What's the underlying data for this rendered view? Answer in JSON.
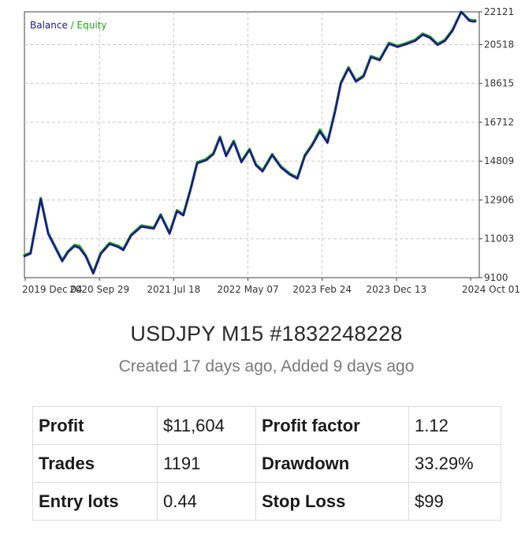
{
  "chart_data": {
    "type": "line",
    "legend": {
      "balance": "Balance",
      "separator": " / ",
      "equity": "Equity"
    },
    "legend_position": "top-left",
    "grid": true,
    "colors": {
      "balance": "#1a1a8c",
      "equity": "#22a022",
      "grid": "#c8c8c8",
      "axis": "#404040"
    },
    "y_ticks": [
      9100,
      11003,
      12906,
      14809,
      16712,
      18615,
      20518,
      22121
    ],
    "ylim": [
      9100,
      22121
    ],
    "x_ticks": [
      "2019 Dec 04",
      "2020 Sep 29",
      "2021 Jul 18",
      "2022 May 07",
      "2023 Feb 24",
      "2023 Dec 13",
      "2024 Oct 01"
    ],
    "xlim": [
      "2019-09-15",
      "2024-10-01"
    ],
    "series": [
      {
        "name": "Balance",
        "x": [
          "2019-09-15",
          "2019-10-10",
          "2019-11-20",
          "2019-12-20",
          "2020-01-10",
          "2020-02-15",
          "2020-03-10",
          "2020-04-05",
          "2020-04-25",
          "2020-05-20",
          "2020-06-20",
          "2020-07-20",
          "2020-08-25",
          "2020-09-29",
          "2020-10-20",
          "2020-11-20",
          "2021-01-01",
          "2021-02-20",
          "2021-03-20",
          "2021-04-25",
          "2021-05-25",
          "2021-06-20",
          "2021-07-18",
          "2021-08-15",
          "2021-09-20",
          "2021-10-20",
          "2021-11-15",
          "2021-12-10",
          "2022-01-10",
          "2022-02-10",
          "2022-03-15",
          "2022-04-10",
          "2022-05-07",
          "2022-06-15",
          "2022-07-20",
          "2022-08-25",
          "2022-09-25",
          "2022-10-25",
          "2022-11-25",
          "2022-12-25",
          "2023-01-25",
          "2023-02-24",
          "2023-03-20",
          "2023-04-20",
          "2023-05-20",
          "2023-06-20",
          "2023-07-20",
          "2023-08-25",
          "2023-10-01",
          "2023-11-05",
          "2023-12-13",
          "2024-01-15",
          "2024-02-15",
          "2024-03-15",
          "2024-04-15",
          "2024-05-15",
          "2024-06-15",
          "2024-07-20",
          "2024-08-20",
          "2024-09-01",
          "2024-09-15"
        ],
        "values": [
          10150,
          10280,
          12950,
          11250,
          10750,
          9900,
          10350,
          10650,
          10550,
          10150,
          9300,
          10250,
          10750,
          10600,
          10450,
          11150,
          11600,
          11500,
          12150,
          11250,
          12350,
          12150,
          13350,
          14700,
          14850,
          15150,
          15950,
          15050,
          15750,
          14750,
          15350,
          14600,
          14300,
          15100,
          14500,
          14150,
          13950,
          15050,
          15600,
          16250,
          15700,
          17200,
          18600,
          19350,
          18700,
          18950,
          19900,
          19750,
          20550,
          20400,
          20550,
          20700,
          21000,
          20850,
          20500,
          20700,
          21200,
          22121,
          21700,
          21650,
          21650
        ]
      },
      {
        "name": "Equity",
        "x": [
          "2019-09-15",
          "2019-10-10",
          "2019-11-20",
          "2019-12-20",
          "2020-01-10",
          "2020-02-15",
          "2020-03-10",
          "2020-04-05",
          "2020-04-25",
          "2020-05-20",
          "2020-06-20",
          "2020-07-20",
          "2020-08-25",
          "2020-09-29",
          "2020-10-20",
          "2020-11-20",
          "2021-01-01",
          "2021-02-20",
          "2021-03-20",
          "2021-04-25",
          "2021-05-25",
          "2021-06-20",
          "2021-07-18",
          "2021-08-15",
          "2021-09-20",
          "2021-10-20",
          "2021-11-15",
          "2021-12-10",
          "2022-01-10",
          "2022-02-10",
          "2022-03-15",
          "2022-04-10",
          "2022-05-07",
          "2022-06-15",
          "2022-07-20",
          "2022-08-25",
          "2022-09-25",
          "2022-10-25",
          "2022-11-25",
          "2022-12-25",
          "2023-01-25",
          "2023-02-24",
          "2023-03-20",
          "2023-04-20",
          "2023-05-20",
          "2023-06-20",
          "2023-07-20",
          "2023-08-25",
          "2023-10-01",
          "2023-11-05",
          "2023-12-13",
          "2024-01-15",
          "2024-02-15",
          "2024-03-15",
          "2024-04-15",
          "2024-05-15",
          "2024-06-15",
          "2024-07-20",
          "2024-08-20",
          "2024-09-01",
          "2024-09-15"
        ],
        "values": [
          10200,
          10320,
          13000,
          11300,
          10800,
          9950,
          10400,
          10700,
          10650,
          10200,
          9350,
          10300,
          10800,
          10650,
          10500,
          11200,
          11650,
          11550,
          12200,
          11300,
          12400,
          12200,
          13400,
          14750,
          14900,
          15200,
          16000,
          15100,
          15800,
          14800,
          15400,
          14650,
          14350,
          15150,
          14550,
          14200,
          14000,
          15100,
          15650,
          16350,
          15750,
          17250,
          18650,
          19400,
          18750,
          19000,
          19950,
          19800,
          20600,
          20450,
          20600,
          20750,
          21050,
          20900,
          20550,
          20750,
          21250,
          22121,
          21750,
          21700,
          21700
        ]
      }
    ]
  },
  "strategy": {
    "title": "USDJPY M15 #1832248228",
    "subtitle": "Created 17 days ago, Added 9 days ago"
  },
  "stats": {
    "profit_label": "Profit",
    "profit_value": "$11,604",
    "profit_factor_label": "Profit factor",
    "profit_factor_value": "1.12",
    "trades_label": "Trades",
    "trades_value": "1191",
    "drawdown_label": "Drawdown",
    "drawdown_value": "33.29%",
    "entry_lots_label": "Entry lots",
    "entry_lots_value": "0.44",
    "stop_loss_label": "Stop Loss",
    "stop_loss_value": "$99"
  }
}
